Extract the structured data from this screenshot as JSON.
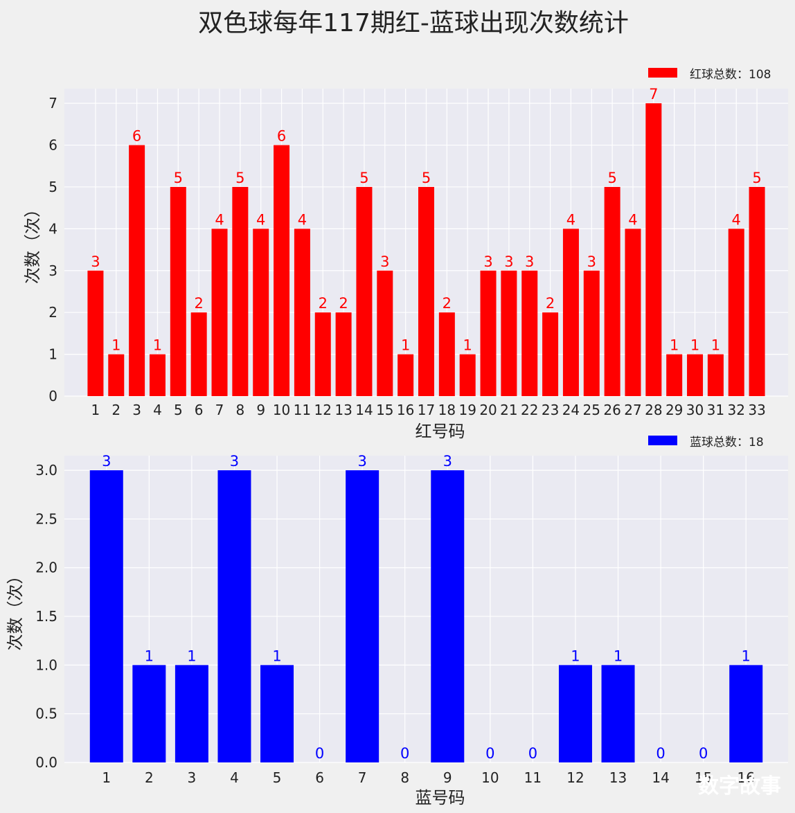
{
  "title": "双色球每年117期红-蓝球出现次数统计",
  "watermark": "数字故事",
  "chart_data": [
    {
      "type": "bar",
      "xlabel": "红号码",
      "ylabel": "次数（次）",
      "legend": "红球总数：108",
      "legend_position": "top-right",
      "color": "#ff0000",
      "grid": true,
      "ylim": [
        0,
        7.35
      ],
      "yticks": [
        "0",
        "1",
        "2",
        "3",
        "4",
        "5",
        "6",
        "7"
      ],
      "categories": [
        "1",
        "2",
        "3",
        "4",
        "5",
        "6",
        "7",
        "8",
        "9",
        "10",
        "11",
        "12",
        "13",
        "14",
        "15",
        "16",
        "17",
        "18",
        "19",
        "20",
        "21",
        "22",
        "23",
        "24",
        "25",
        "26",
        "27",
        "28",
        "29",
        "30",
        "31",
        "32",
        "33"
      ],
      "values": [
        3,
        1,
        6,
        1,
        5,
        2,
        4,
        5,
        4,
        6,
        4,
        2,
        2,
        5,
        3,
        1,
        5,
        2,
        1,
        3,
        3,
        3,
        2,
        4,
        3,
        5,
        4,
        7,
        1,
        1,
        1,
        4,
        5
      ]
    },
    {
      "type": "bar",
      "xlabel": "蓝号码",
      "ylabel": "次数（次）",
      "legend": "蓝球总数：18",
      "legend_position": "top-right",
      "color": "#0000ff",
      "grid": true,
      "ylim": [
        0,
        3.15
      ],
      "yticks": [
        "0.0",
        "0.5",
        "1.0",
        "1.5",
        "2.0",
        "2.5",
        "3.0"
      ],
      "categories": [
        "1",
        "2",
        "3",
        "4",
        "5",
        "6",
        "7",
        "8",
        "9",
        "10",
        "11",
        "12",
        "13",
        "14",
        "15",
        "16"
      ],
      "values": [
        3,
        1,
        1,
        3,
        1,
        0,
        3,
        0,
        3,
        0,
        0,
        1,
        1,
        0,
        0,
        1
      ]
    }
  ]
}
